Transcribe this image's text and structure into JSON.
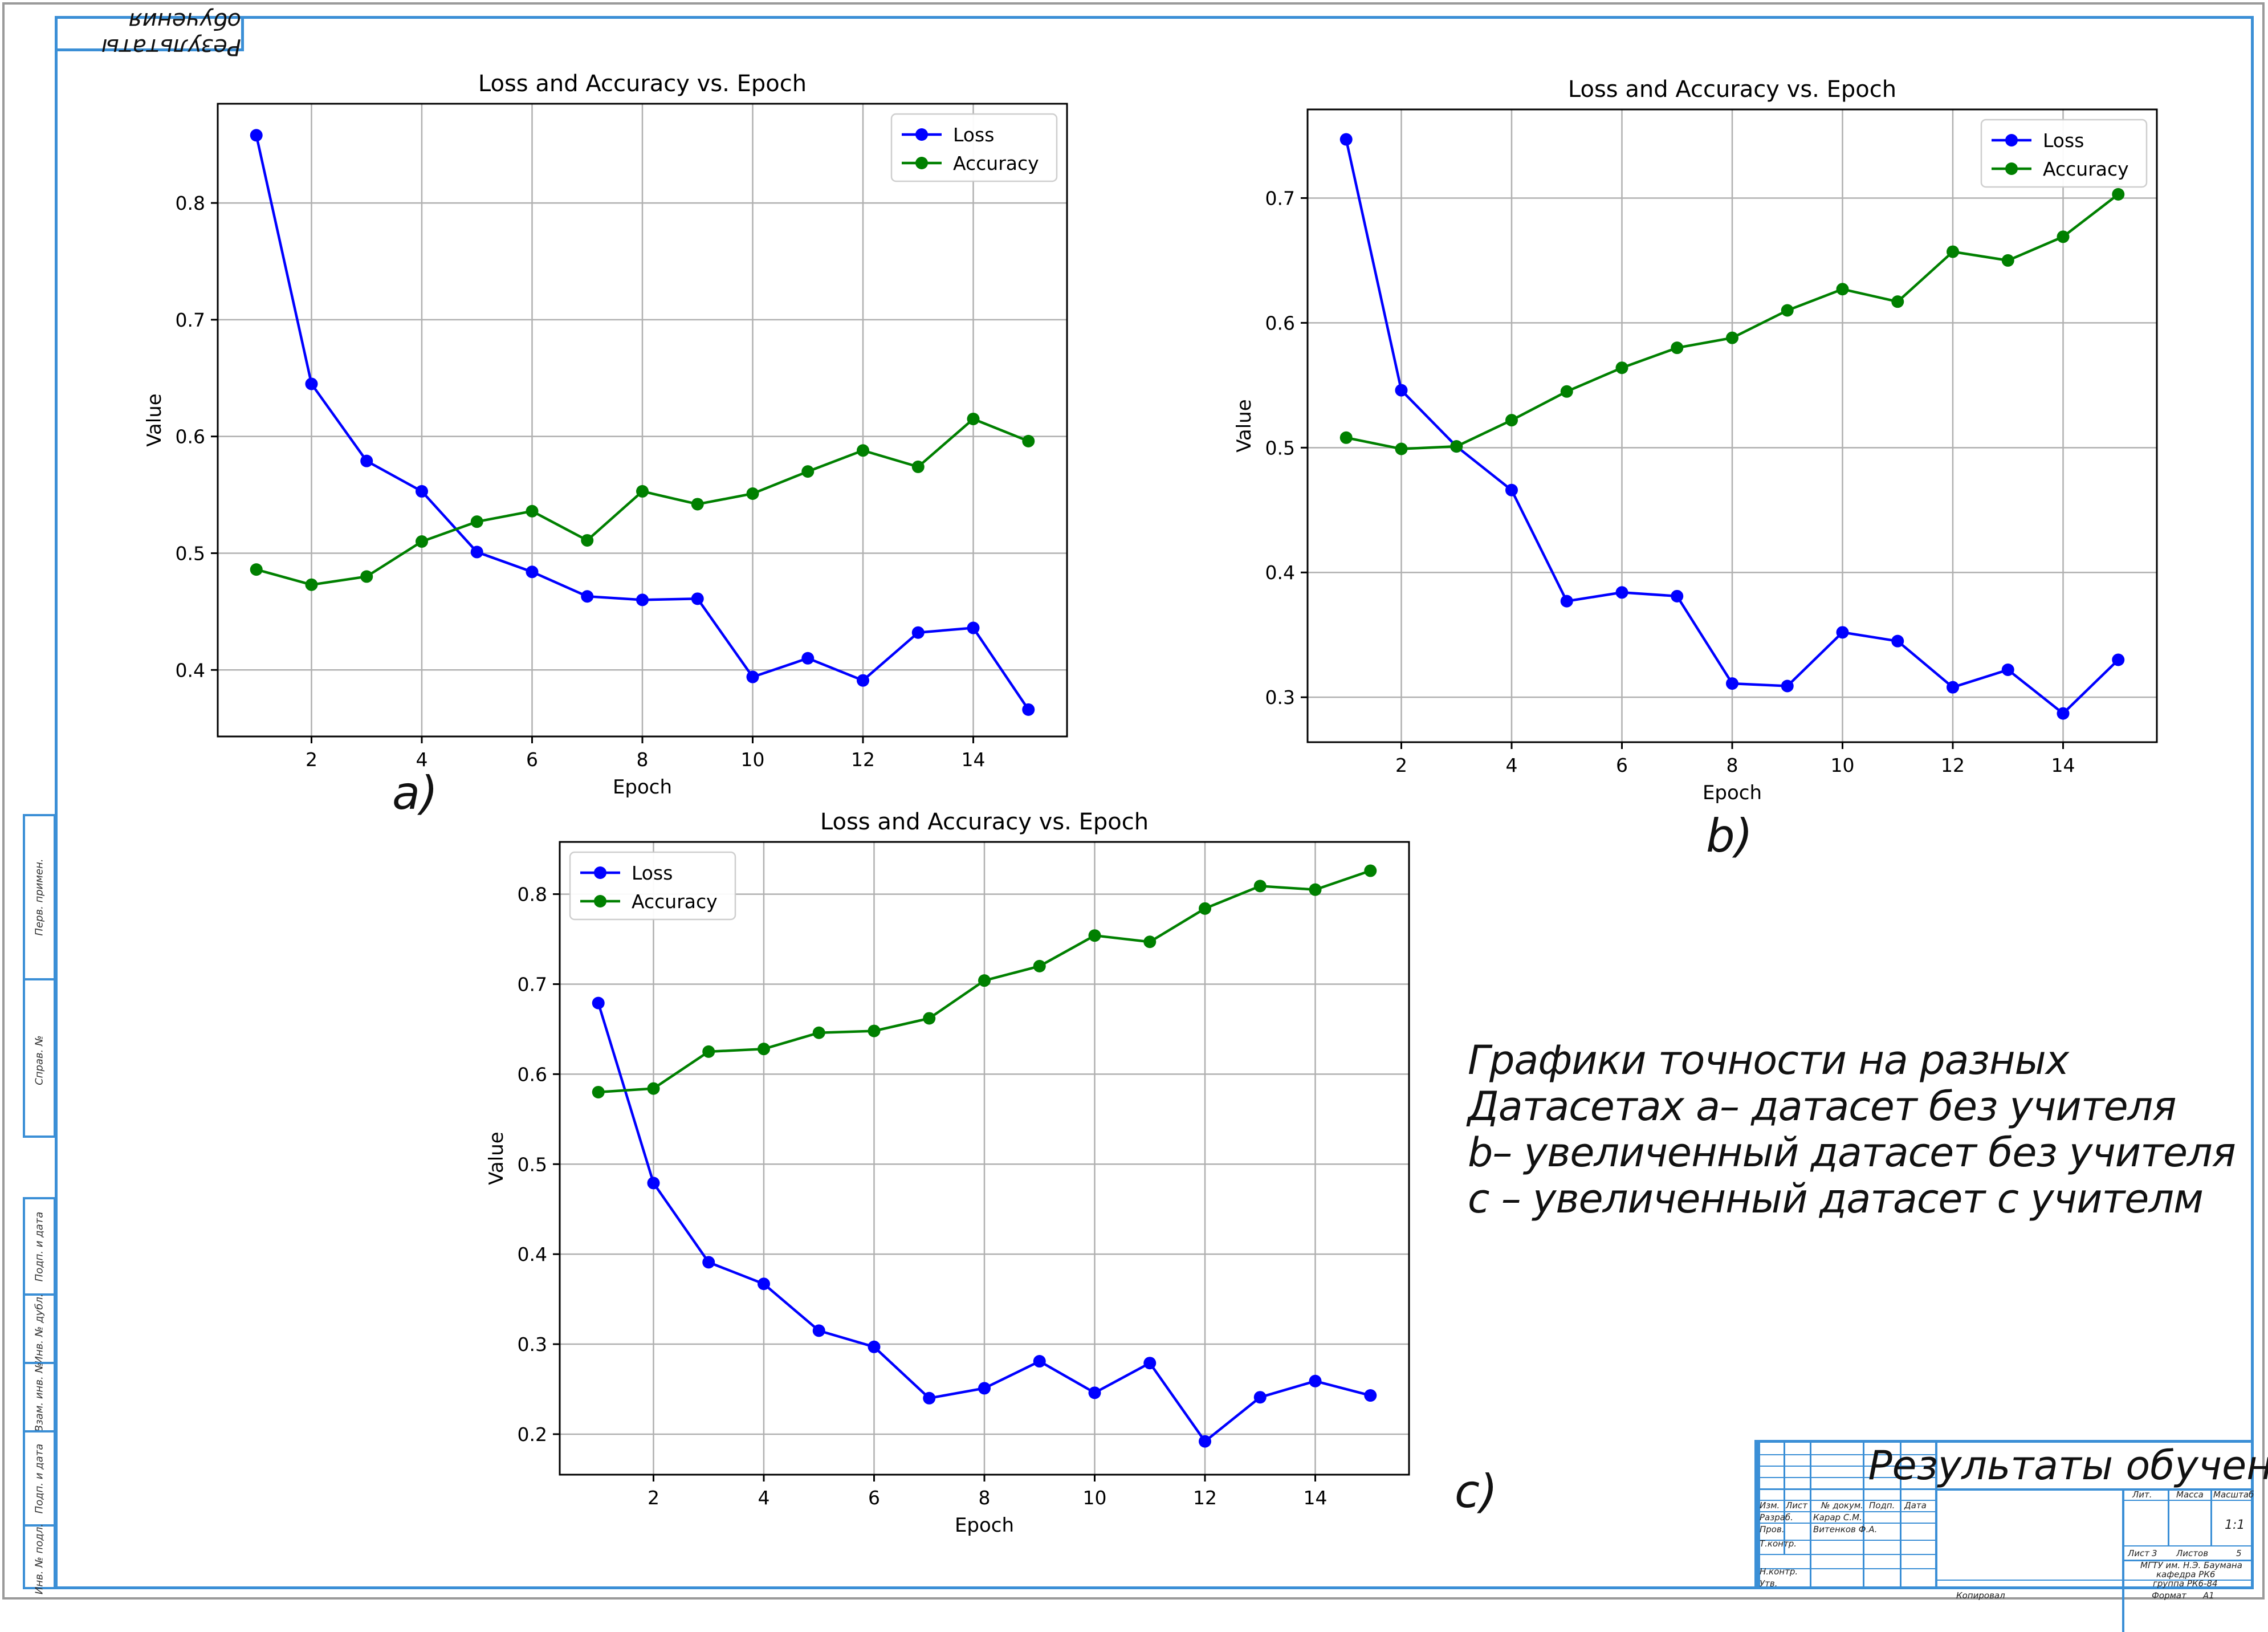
{
  "header_tab": "Результаты обучения",
  "side_labels": [
    "Перв. примен.",
    "Справ. №",
    "Подп. и дата",
    "Инв. № дубл.",
    "Взам. инв. №",
    "Подп. и дата",
    "Инв. № подл."
  ],
  "chart_data": [
    {
      "type": "line",
      "panel": "a)",
      "title": "Loss and Accuracy vs. Epoch",
      "xlabel": "Epoch",
      "ylabel": "Value",
      "x": [
        1,
        2,
        3,
        4,
        5,
        6,
        7,
        8,
        9,
        10,
        11,
        12,
        13,
        14,
        15
      ],
      "xlim": [
        0.3,
        15.7
      ],
      "ylim": [
        0.343,
        0.885
      ],
      "xticks": [
        2,
        4,
        6,
        8,
        10,
        12,
        14
      ],
      "yticks": [
        0.4,
        0.5,
        0.6,
        0.7,
        0.8
      ],
      "grid": true,
      "legend": "top-right",
      "series": [
        {
          "name": "Loss",
          "color": "#0000ff",
          "values": [
            0.858,
            0.645,
            0.579,
            0.553,
            0.501,
            0.484,
            0.463,
            0.46,
            0.461,
            0.394,
            0.41,
            0.391,
            0.432,
            0.436,
            0.366
          ]
        },
        {
          "name": "Accuracy",
          "color": "#008000",
          "values": [
            0.486,
            0.473,
            0.48,
            0.51,
            0.527,
            0.536,
            0.511,
            0.553,
            0.542,
            0.551,
            0.57,
            0.588,
            0.574,
            0.615,
            0.596
          ]
        }
      ]
    },
    {
      "type": "line",
      "panel": "b)",
      "title": "Loss and Accuracy vs. Epoch",
      "xlabel": "Epoch",
      "ylabel": "Value",
      "x": [
        1,
        2,
        3,
        4,
        5,
        6,
        7,
        8,
        9,
        10,
        11,
        12,
        13,
        14,
        15
      ],
      "xlim": [
        0.3,
        15.7
      ],
      "ylim": [
        0.264,
        0.771
      ],
      "xticks": [
        2,
        4,
        6,
        8,
        10,
        12,
        14
      ],
      "yticks": [
        0.3,
        0.4,
        0.5,
        0.6,
        0.7
      ],
      "grid": true,
      "legend": "top-right",
      "series": [
        {
          "name": "Loss",
          "color": "#0000ff",
          "values": [
            0.747,
            0.546,
            0.501,
            0.466,
            0.377,
            0.384,
            0.381,
            0.311,
            0.309,
            0.352,
            0.345,
            0.308,
            0.322,
            0.287,
            0.33
          ]
        },
        {
          "name": "Accuracy",
          "color": "#008000",
          "values": [
            0.508,
            0.499,
            0.501,
            0.522,
            0.545,
            0.564,
            0.58,
            0.588,
            0.61,
            0.627,
            0.617,
            0.657,
            0.65,
            0.669,
            0.703
          ]
        }
      ]
    },
    {
      "type": "line",
      "panel": "c)",
      "title": "Loss and Accuracy vs. Epoch",
      "xlabel": "Epoch",
      "ylabel": "Value",
      "x": [
        1,
        2,
        3,
        4,
        5,
        6,
        7,
        8,
        9,
        10,
        11,
        12,
        13,
        14,
        15
      ],
      "xlim": [
        0.3,
        15.7
      ],
      "ylim": [
        0.155,
        0.858
      ],
      "xticks": [
        2,
        4,
        6,
        8,
        10,
        12,
        14
      ],
      "yticks": [
        0.2,
        0.3,
        0.4,
        0.5,
        0.6,
        0.7,
        0.8
      ],
      "grid": true,
      "legend": "top-left",
      "series": [
        {
          "name": "Loss",
          "color": "#0000ff",
          "values": [
            0.679,
            0.479,
            0.391,
            0.367,
            0.315,
            0.297,
            0.24,
            0.251,
            0.281,
            0.246,
            0.279,
            0.192,
            0.241,
            0.259,
            0.243
          ]
        },
        {
          "name": "Accuracy",
          "color": "#008000",
          "values": [
            0.58,
            0.584,
            0.625,
            0.628,
            0.646,
            0.648,
            0.662,
            0.704,
            0.72,
            0.754,
            0.747,
            0.784,
            0.809,
            0.805,
            0.826
          ]
        }
      ]
    }
  ],
  "caption": {
    "line1": "Графики точности на разных",
    "line2": "Датасетах a– датасет без учителя",
    "line3": "b– увеличенный датасет без учителя",
    "line4": "c – увеличенный датасет с учителм"
  },
  "title_block": {
    "title": "Результаты обучения",
    "col_izm": "Изм.",
    "col_list": "Лист",
    "col_doc": "№ докум.",
    "col_podp": "Подп.",
    "col_data": "Дата",
    "razrab_label": "Разраб.",
    "razrab_name": "Карар С.М.",
    "prov_label": "Пров.",
    "prov_name": "Витенков Ф.А.",
    "tkontr_label": "Т.контр.",
    "nkontr_label": "Н.контр.",
    "utv_label": "Утв.",
    "lit_label": "Лит.",
    "massa_label": "Масса",
    "masshtab_label": "Масштаб",
    "masshtab_value": "1:1",
    "list_label": "Лист",
    "list_value": "3",
    "listov_label": "Листов",
    "listov_value": "5",
    "org_line1": "МГТУ им. Н.Э. Баумана",
    "org_line2": "кафедра РК6",
    "org_line3": "группа РК6-84",
    "kopiroval": "Копировал",
    "format_label": "Формат",
    "format_value": "А1"
  }
}
